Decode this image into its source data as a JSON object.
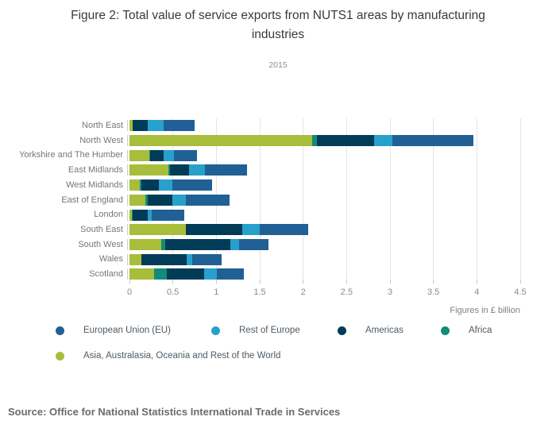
{
  "header": {
    "title": "Figure 2: Total value of service exports from NUTS1 areas by manufacturing industries",
    "subtitle": "2015"
  },
  "chart_data": {
    "type": "bar",
    "orientation": "horizontal",
    "stacked": true,
    "title": "Figure 2: Total value of service exports from NUTS1 areas by manufacturing industries",
    "subtitle": "2015",
    "categories": [
      "North East",
      "North West",
      "Yorkshire and The Humber",
      "East Midlands",
      "West Midlands",
      "East of England",
      "London",
      "South East",
      "South West",
      "Wales",
      "Scotland"
    ],
    "series": [
      {
        "name": "Asia, Australasia, Oceania and Rest of the World",
        "color": "#a8bd3a",
        "values": [
          0.04,
          2.1,
          0.23,
          0.45,
          0.12,
          0.18,
          0.03,
          0.65,
          0.37,
          0.14,
          0.28
        ]
      },
      {
        "name": "Africa",
        "color": "#128c79",
        "values": [
          0.0,
          0.06,
          0.01,
          0.02,
          0.02,
          0.03,
          0.01,
          0.0,
          0.04,
          0.0,
          0.15
        ]
      },
      {
        "name": "Americas",
        "color": "#003c57",
        "values": [
          0.17,
          0.66,
          0.15,
          0.22,
          0.2,
          0.28,
          0.17,
          0.65,
          0.75,
          0.52,
          0.43
        ]
      },
      {
        "name": "Rest of Europe",
        "color": "#27a0cc",
        "values": [
          0.18,
          0.21,
          0.12,
          0.18,
          0.15,
          0.16,
          0.05,
          0.2,
          0.1,
          0.06,
          0.15
        ]
      },
      {
        "name": "European Union (EU)",
        "color": "#206095",
        "values": [
          0.36,
          0.93,
          0.27,
          0.48,
          0.46,
          0.5,
          0.37,
          0.56,
          0.34,
          0.34,
          0.31
        ]
      }
    ],
    "legend_order": [
      "European Union (EU)",
      "Rest of Europe",
      "Americas",
      "Africa",
      "Asia, Australasia, Oceania and Rest of the World"
    ],
    "legend_position": "bottom",
    "xlabel": "Figures in £ billion",
    "xlim": [
      0,
      4.5
    ],
    "xticks": [
      0,
      0.5,
      1,
      1.5,
      2,
      2.5,
      3,
      3.5,
      4,
      4.5
    ],
    "xtick_labels": [
      "0",
      "0.5",
      "1",
      "1.5",
      "2",
      "2.5",
      "3",
      "3.5",
      "4",
      "4.5"
    ],
    "grid": "vertical"
  },
  "footer": {
    "source": "Source: Office for National Statistics International Trade in Services"
  },
  "colors": {
    "eu_blue": "#206095",
    "rest_of_europe_light_blue": "#27a0cc",
    "americas_navy": "#003c57",
    "africa_teal": "#128c79",
    "asia_olive": "#a8bd3a",
    "gridline": "#e4e4e6",
    "axis_text": "#8a8a8a",
    "category_text": "#767676",
    "legend_text": "#4d5a63",
    "title_text": "#3a393b",
    "source_text": "#6b6b6b"
  }
}
